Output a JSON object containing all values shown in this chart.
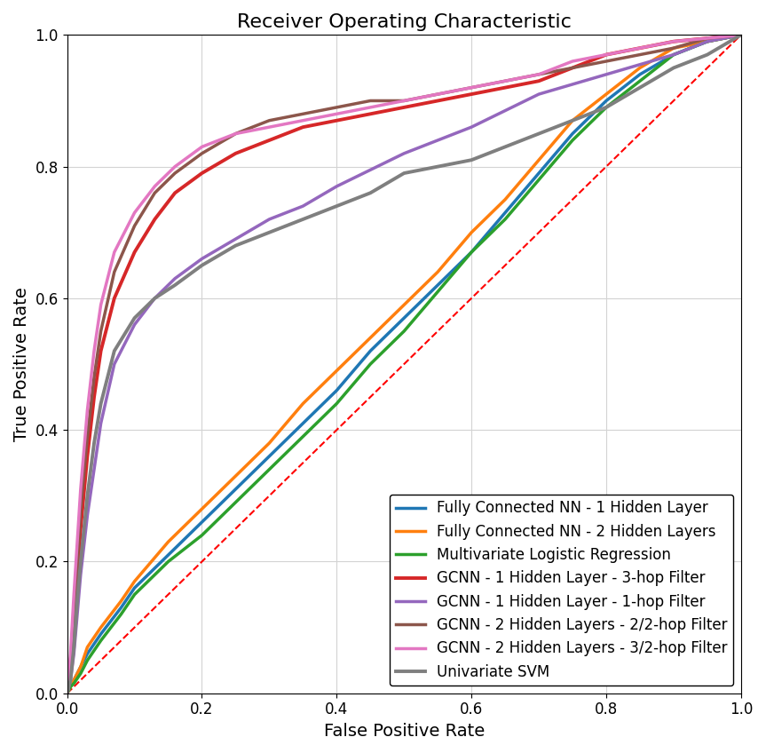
{
  "title": "Receiver Operating Characteristic",
  "xlabel": "False Positive Rate",
  "ylabel": "True Positive Rate",
  "xlim": [
    0.0,
    1.0
  ],
  "ylim": [
    0.0,
    1.0
  ],
  "curves": [
    {
      "label": "Fully Connected NN - 1 Hidden Layer",
      "color": "#1f77b4",
      "linewidth": 2.5,
      "points_x": [
        0.0,
        0.005,
        0.01,
        0.02,
        0.03,
        0.05,
        0.08,
        0.1,
        0.15,
        0.2,
        0.25,
        0.3,
        0.35,
        0.4,
        0.45,
        0.5,
        0.55,
        0.6,
        0.65,
        0.7,
        0.75,
        0.8,
        0.85,
        0.9,
        0.95,
        1.0
      ],
      "points_y": [
        0.0,
        0.01,
        0.02,
        0.04,
        0.06,
        0.09,
        0.13,
        0.16,
        0.21,
        0.26,
        0.31,
        0.36,
        0.41,
        0.46,
        0.52,
        0.57,
        0.62,
        0.67,
        0.73,
        0.79,
        0.85,
        0.9,
        0.94,
        0.97,
        0.99,
        1.0
      ]
    },
    {
      "label": "Fully Connected NN - 2 Hidden Layers",
      "color": "#ff7f0e",
      "linewidth": 2.5,
      "points_x": [
        0.0,
        0.005,
        0.01,
        0.02,
        0.03,
        0.05,
        0.08,
        0.1,
        0.15,
        0.2,
        0.25,
        0.3,
        0.35,
        0.4,
        0.45,
        0.5,
        0.55,
        0.6,
        0.65,
        0.7,
        0.75,
        0.8,
        0.85,
        0.9,
        0.95,
        1.0
      ],
      "points_y": [
        0.0,
        0.01,
        0.02,
        0.04,
        0.07,
        0.1,
        0.14,
        0.17,
        0.23,
        0.28,
        0.33,
        0.38,
        0.44,
        0.49,
        0.54,
        0.59,
        0.64,
        0.7,
        0.75,
        0.81,
        0.87,
        0.91,
        0.95,
        0.98,
        0.99,
        1.0
      ]
    },
    {
      "label": "Multivariate Logistic Regression",
      "color": "#2ca02c",
      "linewidth": 2.5,
      "points_x": [
        0.0,
        0.005,
        0.01,
        0.02,
        0.03,
        0.05,
        0.08,
        0.1,
        0.15,
        0.2,
        0.25,
        0.3,
        0.35,
        0.4,
        0.45,
        0.5,
        0.55,
        0.6,
        0.65,
        0.7,
        0.75,
        0.8,
        0.85,
        0.9,
        0.95,
        1.0
      ],
      "points_y": [
        0.0,
        0.01,
        0.015,
        0.03,
        0.05,
        0.08,
        0.12,
        0.15,
        0.2,
        0.24,
        0.29,
        0.34,
        0.39,
        0.44,
        0.5,
        0.55,
        0.61,
        0.67,
        0.72,
        0.78,
        0.84,
        0.89,
        0.93,
        0.97,
        0.99,
        1.0
      ]
    },
    {
      "label": "GCNN - 1 Hidden Layer - 3-hop Filter",
      "color": "#d62728",
      "linewidth": 2.8,
      "points_x": [
        0.0,
        0.005,
        0.01,
        0.015,
        0.02,
        0.03,
        0.04,
        0.05,
        0.07,
        0.1,
        0.13,
        0.16,
        0.2,
        0.25,
        0.3,
        0.35,
        0.4,
        0.45,
        0.5,
        0.55,
        0.6,
        0.65,
        0.7,
        0.75,
        0.8,
        0.85,
        0.9,
        0.95,
        1.0
      ],
      "points_y": [
        0.0,
        0.04,
        0.1,
        0.18,
        0.25,
        0.36,
        0.45,
        0.52,
        0.6,
        0.67,
        0.72,
        0.76,
        0.79,
        0.82,
        0.84,
        0.86,
        0.87,
        0.88,
        0.89,
        0.9,
        0.91,
        0.92,
        0.93,
        0.95,
        0.97,
        0.98,
        0.99,
        0.995,
        1.0
      ]
    },
    {
      "label": "GCNN - 1 Hidden Layer - 1-hop Filter",
      "color": "#9467bd",
      "linewidth": 2.5,
      "points_x": [
        0.0,
        0.005,
        0.01,
        0.015,
        0.02,
        0.03,
        0.04,
        0.05,
        0.07,
        0.1,
        0.13,
        0.16,
        0.2,
        0.25,
        0.3,
        0.35,
        0.4,
        0.5,
        0.6,
        0.7,
        0.8,
        0.9,
        0.95,
        1.0
      ],
      "points_y": [
        0.0,
        0.02,
        0.06,
        0.12,
        0.18,
        0.27,
        0.34,
        0.41,
        0.5,
        0.56,
        0.6,
        0.63,
        0.66,
        0.69,
        0.72,
        0.74,
        0.77,
        0.82,
        0.86,
        0.91,
        0.94,
        0.97,
        0.99,
        1.0
      ]
    },
    {
      "label": "GCNN - 2 Hidden Layers - 2/2-hop Filter",
      "color": "#8c564b",
      "linewidth": 2.5,
      "points_x": [
        0.0,
        0.005,
        0.01,
        0.015,
        0.02,
        0.03,
        0.04,
        0.05,
        0.07,
        0.1,
        0.13,
        0.16,
        0.2,
        0.25,
        0.3,
        0.35,
        0.4,
        0.45,
        0.5,
        0.55,
        0.6,
        0.65,
        0.7,
        0.75,
        0.8,
        0.85,
        0.9,
        0.95,
        1.0
      ],
      "points_y": [
        0.0,
        0.05,
        0.12,
        0.2,
        0.28,
        0.39,
        0.48,
        0.55,
        0.64,
        0.71,
        0.76,
        0.79,
        0.82,
        0.85,
        0.87,
        0.88,
        0.89,
        0.9,
        0.9,
        0.91,
        0.92,
        0.93,
        0.94,
        0.95,
        0.96,
        0.97,
        0.98,
        0.995,
        1.0
      ]
    },
    {
      "label": "GCNN - 2 Hidden Layers - 3/2-hop Filter",
      "color": "#e377c2",
      "linewidth": 2.5,
      "points_x": [
        0.0,
        0.005,
        0.01,
        0.015,
        0.02,
        0.03,
        0.04,
        0.05,
        0.07,
        0.1,
        0.13,
        0.16,
        0.2,
        0.25,
        0.3,
        0.35,
        0.4,
        0.45,
        0.5,
        0.55,
        0.6,
        0.65,
        0.7,
        0.75,
        0.8,
        0.85,
        0.9,
        0.95,
        1.0
      ],
      "points_y": [
        0.0,
        0.06,
        0.15,
        0.23,
        0.31,
        0.43,
        0.52,
        0.59,
        0.67,
        0.73,
        0.77,
        0.8,
        0.83,
        0.85,
        0.86,
        0.87,
        0.88,
        0.89,
        0.9,
        0.91,
        0.92,
        0.93,
        0.94,
        0.96,
        0.97,
        0.98,
        0.99,
        0.995,
        1.0
      ]
    },
    {
      "label": "Univariate SVM",
      "color": "#7f7f7f",
      "linewidth": 2.8,
      "points_x": [
        0.0,
        0.005,
        0.01,
        0.015,
        0.02,
        0.03,
        0.04,
        0.05,
        0.07,
        0.1,
        0.13,
        0.16,
        0.2,
        0.25,
        0.3,
        0.35,
        0.4,
        0.45,
        0.5,
        0.55,
        0.6,
        0.65,
        0.7,
        0.75,
        0.8,
        0.85,
        0.9,
        0.95,
        1.0
      ],
      "points_y": [
        0.0,
        0.02,
        0.07,
        0.14,
        0.2,
        0.3,
        0.38,
        0.44,
        0.52,
        0.57,
        0.6,
        0.62,
        0.65,
        0.68,
        0.7,
        0.72,
        0.74,
        0.76,
        0.79,
        0.8,
        0.81,
        0.83,
        0.85,
        0.87,
        0.89,
        0.92,
        0.95,
        0.97,
        1.0
      ]
    }
  ],
  "diagonal_color": "red",
  "diagonal_linestyle": "--",
  "diagonal_linewidth": 1.5,
  "grid": true,
  "legend_loc": "lower right",
  "legend_fontsize": 12,
  "title_fontsize": 16,
  "label_fontsize": 14,
  "tick_fontsize": 12,
  "background_color": "#ffffff"
}
